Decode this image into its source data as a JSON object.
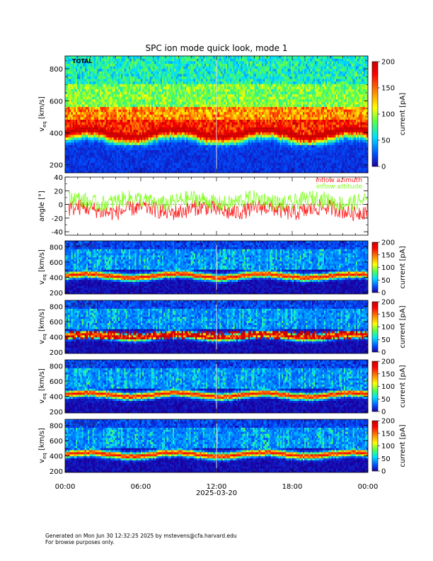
{
  "title": "SPC ion mode quick look, mode 1",
  "x_axis": {
    "tick_labels": [
      "00:00",
      "06:00",
      "12:00",
      "18:00",
      "00:00"
    ],
    "date_label": "2025-03-20",
    "range_hours": [
      0,
      24
    ]
  },
  "colorbar": {
    "label": "current [pA]",
    "range": [
      0,
      200
    ],
    "top_ticks": [
      "0",
      "50",
      "100",
      "150",
      "200"
    ],
    "sensor_ticks": [
      "0",
      "50",
      "100",
      "150",
      "200"
    ]
  },
  "chart_data": [
    {
      "type": "heatmap",
      "name": "total",
      "panel_label": "TOTAL",
      "ylabel": "v",
      "ylabel_sub": "eq",
      "ylabel_unit": " [km/s]",
      "ylim": [
        150,
        880
      ],
      "yticks": [
        200,
        400,
        600,
        800
      ],
      "ytick_labels": [
        "200",
        "400",
        "600",
        "800"
      ],
      "xlim": [
        0,
        24
      ],
      "peak_speed_kms": 400,
      "background": "#1a44ff"
    },
    {
      "type": "line",
      "name": "angle",
      "ylabel": "angle [°]",
      "ylim": [
        -45,
        40
      ],
      "yticks": [
        -40,
        -20,
        0,
        20,
        40
      ],
      "ytick_labels": [
        "-40",
        "-20",
        "0",
        "20",
        "40"
      ],
      "xlim": [
        0,
        24
      ],
      "series": [
        {
          "name": "inflow azimuth",
          "color": "#ff1a1a",
          "mean": -8,
          "spread": 12
        },
        {
          "name": "inflow attitude",
          "color": "#7fff1a",
          "mean": 5,
          "spread": 12
        }
      ]
    },
    {
      "type": "heatmap",
      "name": "sensor-a",
      "panel_label": "A sensor",
      "ylabel": "v",
      "ylabel_sub": "eq",
      "ylabel_unit": " [km/s]",
      "ylim": [
        180,
        880
      ],
      "yticks": [
        200,
        400,
        600,
        800
      ],
      "ytick_labels": [
        "200",
        "400",
        "600",
        "800"
      ],
      "xlim": [
        0,
        24
      ],
      "peak_speed_kms": 420,
      "background": "#200055"
    },
    {
      "type": "heatmap",
      "name": "sensor-b",
      "panel_label": "B sensor",
      "ylabel": "v",
      "ylabel_sub": "eq",
      "ylabel_unit": " [km/s]",
      "ylim": [
        180,
        880
      ],
      "yticks": [
        200,
        400,
        600,
        800
      ],
      "ytick_labels": [
        "200",
        "400",
        "600",
        "800"
      ],
      "xlim": [
        0,
        24
      ],
      "peak_speed_kms": 410,
      "background": "#200055"
    },
    {
      "type": "heatmap",
      "name": "sensor-c",
      "panel_label": "C sensor",
      "ylabel": "v",
      "ylabel_sub": "eq",
      "ylabel_unit": " [km/s]",
      "ylim": [
        180,
        880
      ],
      "yticks": [
        200,
        400,
        600,
        800
      ],
      "ytick_labels": [
        "200",
        "400",
        "600",
        "800"
      ],
      "xlim": [
        0,
        24
      ],
      "peak_speed_kms": 420,
      "background": "#200055"
    },
    {
      "type": "heatmap",
      "name": "sensor-d",
      "panel_label": "D sensor",
      "ylabel": "v",
      "ylabel_sub": "eq",
      "ylabel_unit": " [km/s]",
      "ylim": [
        180,
        880
      ],
      "yticks": [
        200,
        400,
        600,
        800
      ],
      "ytick_labels": [
        "200",
        "400",
        "600",
        "800"
      ],
      "xlim": [
        0,
        24
      ],
      "peak_speed_kms": 420,
      "background": "#200055"
    }
  ],
  "footer": {
    "line1": "Generated on Mon Jun 30 12:32:25 2025 by mstevens@cfa.harvard.edu",
    "line2": "For browse purposes only."
  }
}
